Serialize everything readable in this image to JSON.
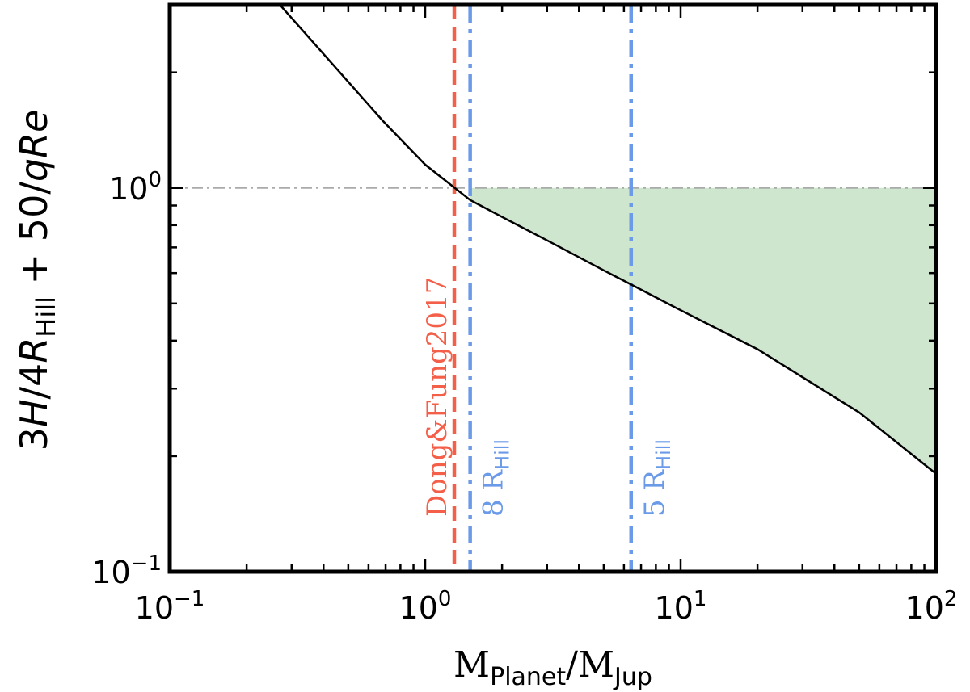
{
  "chart_data": {
    "type": "line",
    "xscale": "log",
    "yscale": "log",
    "xlim": [
      0.1,
      100
    ],
    "ylim": [
      0.1,
      3
    ],
    "grid": false,
    "xlabel": {
      "main": "M",
      "sub": "Planet",
      "sep": "/M",
      "sub2": "Jup"
    },
    "ylabel": {
      "p1": "3",
      "p2": "H",
      "p3": "/4",
      "p4": "R",
      "p5": "Hill",
      "p6": " + 50/",
      "p7": "qRe"
    },
    "xticks": [
      {
        "value": 0.1,
        "base": "10",
        "exp": "−1"
      },
      {
        "value": 1,
        "base": "10",
        "exp": "0"
      },
      {
        "value": 10,
        "base": "10",
        "exp": "1"
      },
      {
        "value": 100,
        "base": "10",
        "exp": "2"
      }
    ],
    "yticks": [
      {
        "value": 0.1,
        "base": "10",
        "exp": "−1"
      },
      {
        "value": 1,
        "base": "10",
        "exp": "0"
      }
    ],
    "series": [
      {
        "color": "#000000",
        "points": [
          [
            0.27,
            3.0
          ],
          [
            0.68,
            1.5
          ],
          [
            1.0,
            1.15
          ],
          [
            1.5,
            0.93
          ],
          [
            2.0,
            0.84
          ],
          [
            3.0,
            0.73
          ],
          [
            5.0,
            0.61
          ],
          [
            6.4,
            0.56
          ],
          [
            10.0,
            0.48
          ],
          [
            20.0,
            0.38
          ],
          [
            50.0,
            0.26
          ],
          [
            100.0,
            0.18
          ]
        ]
      }
    ],
    "reference_line": {
      "y": 1.0,
      "color": "#aaaaaa",
      "style": "dashdot"
    },
    "shaded_region": {
      "color": "#cde6cd",
      "x_from": 1.5,
      "x_to": 100,
      "upper": 1.0
    },
    "vlines": [
      {
        "x": 1.3,
        "color": "#f45f49",
        "style": "dashed",
        "label": "Dong&Fung2017",
        "label_sub": ""
      },
      {
        "x": 1.5,
        "color": "#6b9be8",
        "style": "dashdot",
        "label": "8 R",
        "label_sub": "Hill"
      },
      {
        "x": 6.4,
        "color": "#6b9be8",
        "style": "dashdot",
        "label": "5 R",
        "label_sub": "Hill"
      }
    ]
  }
}
